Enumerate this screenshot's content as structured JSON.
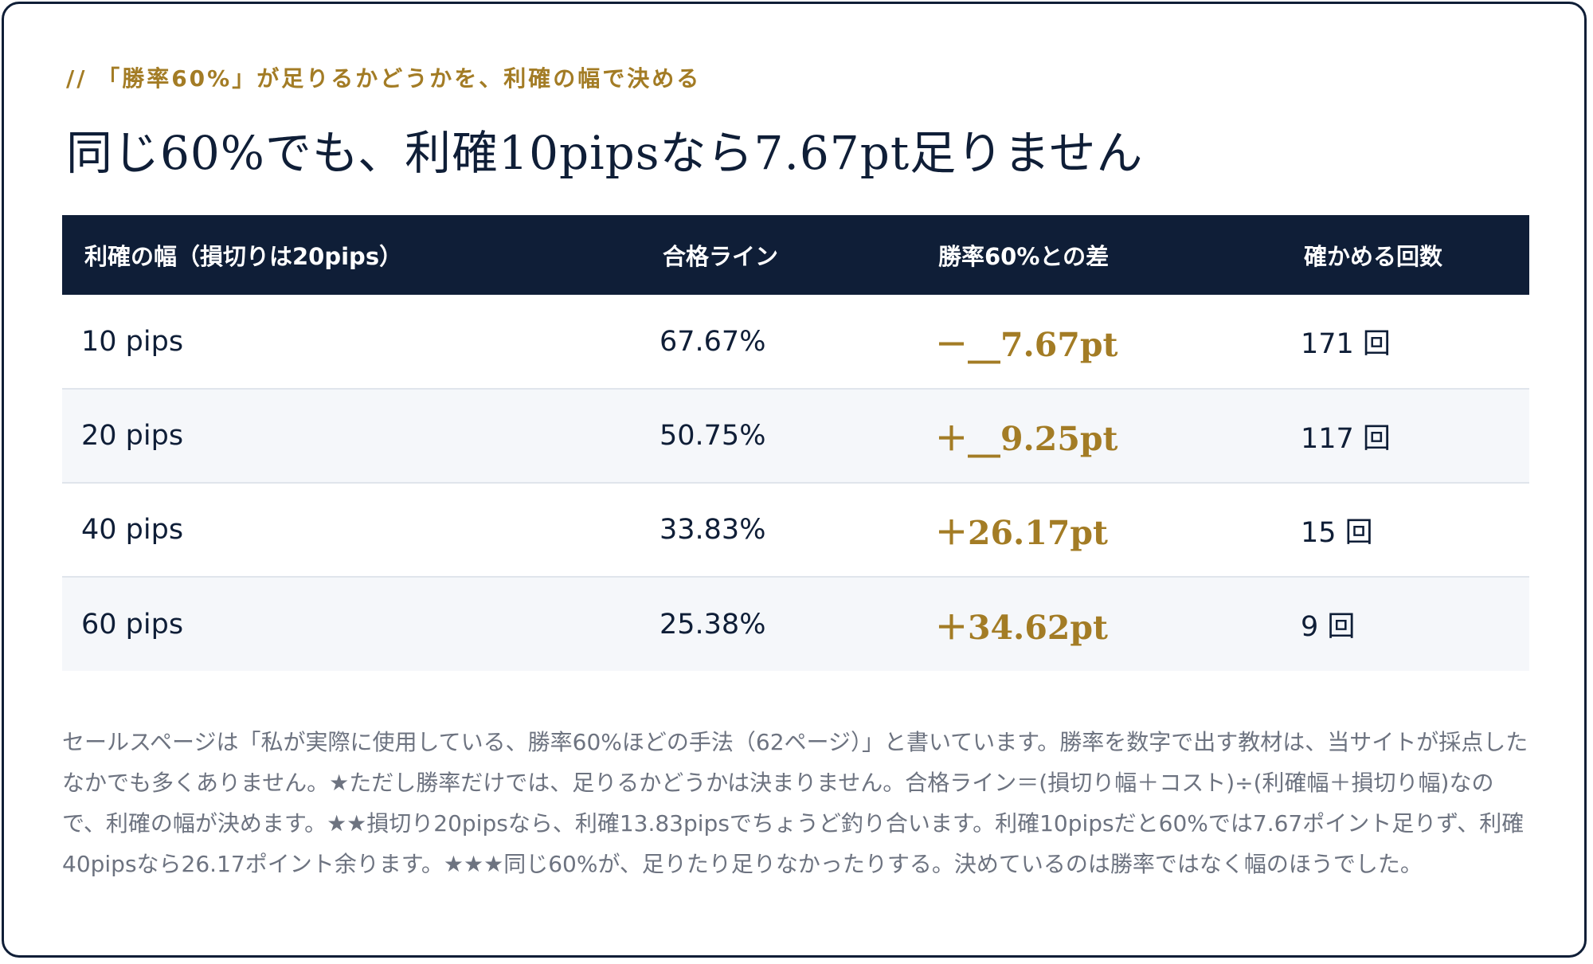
{
  "eyebrow": "// 「勝率60%」が足りるかどうかを、利確の幅で決める",
  "headline": "同じ60%でも、利確10pipsなら7.67pt足りません",
  "table": {
    "headers": [
      "利確の幅（損切りは20pips）",
      "合格ライン",
      "勝率60%との差",
      "確かめる回数"
    ],
    "rows": [
      {
        "tp": "10 pips",
        "line": "67.67%",
        "diff": "－__7.67pt",
        "count": "171 回"
      },
      {
        "tp": "20 pips",
        "line": "50.75%",
        "diff": "＋__9.25pt",
        "count": "117 回"
      },
      {
        "tp": "40 pips",
        "line": "33.83%",
        "diff": "＋26.17pt",
        "count": "15 回"
      },
      {
        "tp": "60 pips",
        "line": "25.38%",
        "diff": "＋34.62pt",
        "count": "9 回"
      }
    ]
  },
  "note": "セールスページは「私が実際に使用している、勝率60%ほどの手法（62ページ）」と書いています。勝率を数字で出す教材は、当サイトが採点したなかでも多くありません。★ただし勝率だけでは、足りるかどうかは決まりません。合格ライン＝(損切り幅＋コスト)÷(利確幅＋損切り幅)なので、利確の幅が決めます。★★損切り20pipsなら、利確13.83pipsでちょうど釣り合います。利確10pipsだと60%では7.67ポイント足りず、利確40pipsなら26.17ポイント余ります。★★★同じ60%が、足りたり足りなかったりする。決めているのは勝率ではなく幅のほうでした。",
  "colors": {
    "navy": "#0f1e37",
    "gold": "#a37c25",
    "muted_text": "#6d7380",
    "row_alt": "#f5f7fa"
  }
}
